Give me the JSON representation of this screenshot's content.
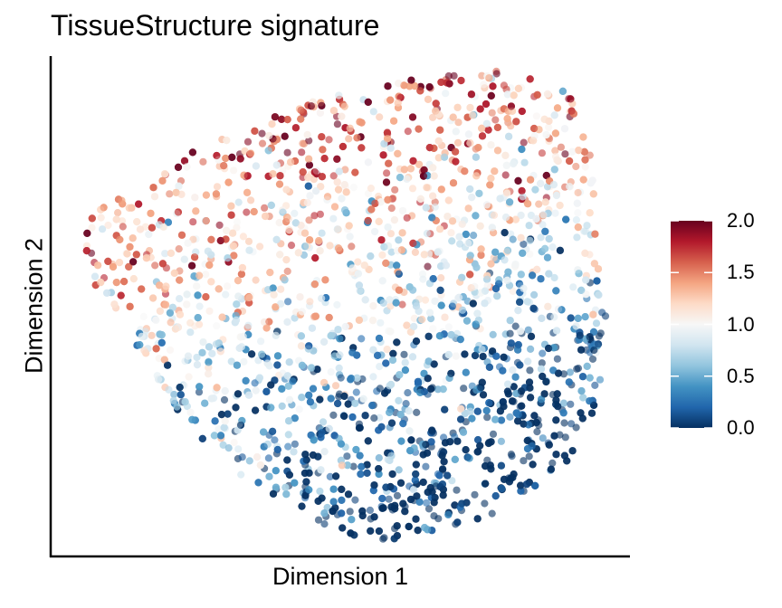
{
  "chart_data": {
    "type": "scatter",
    "title": "TissueStructure signature",
    "xlabel": "Dimension 1",
    "ylabel": "Dimension 2",
    "axis_ticks_shown": false,
    "grid": false,
    "point_count_estimate": 4000,
    "point_opacity": 0.6,
    "colorbar": {
      "position": "right",
      "min": 0.0,
      "max": 2.0,
      "ticks": [
        "2.0",
        "1.5",
        "1.0",
        "0.5",
        "0.0"
      ],
      "tick_values": [
        2.0,
        1.5,
        1.0,
        0.5,
        0.0
      ],
      "colors": [
        "#053061",
        "#2166ac",
        "#4393c3",
        "#92c5de",
        "#d1e5f0",
        "#f7f7f7",
        "#fddbc7",
        "#f4a582",
        "#d6604d",
        "#b2182b",
        "#67001f"
      ]
    },
    "point_cloud_outline": [
      [
        0.04,
        0.36
      ],
      [
        0.08,
        0.31
      ],
      [
        0.14,
        0.26
      ],
      [
        0.22,
        0.21
      ],
      [
        0.32,
        0.14
      ],
      [
        0.44,
        0.09
      ],
      [
        0.58,
        0.05
      ],
      [
        0.7,
        0.03
      ],
      [
        0.8,
        0.03
      ],
      [
        0.9,
        0.07
      ],
      [
        0.93,
        0.18
      ],
      [
        0.94,
        0.3
      ],
      [
        0.95,
        0.42
      ],
      [
        0.96,
        0.54
      ],
      [
        0.95,
        0.66
      ],
      [
        0.93,
        0.75
      ],
      [
        0.88,
        0.83
      ],
      [
        0.8,
        0.9
      ],
      [
        0.7,
        0.94
      ],
      [
        0.6,
        0.97
      ],
      [
        0.5,
        0.96
      ],
      [
        0.42,
        0.9
      ],
      [
        0.33,
        0.84
      ],
      [
        0.27,
        0.78
      ],
      [
        0.2,
        0.68
      ],
      [
        0.15,
        0.58
      ],
      [
        0.1,
        0.5
      ],
      [
        0.06,
        0.43
      ]
    ],
    "value_trend": "high values (red, ~1.5-2.0) concentrated along the upper-left and top band; low values (blue, ~0.0-0.5) concentrated in the lower-right region"
  }
}
